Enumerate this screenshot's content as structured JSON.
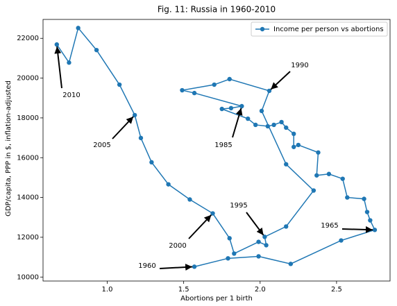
{
  "chart_data": {
    "type": "line",
    "title": "Fig. 11: Russia in 1960-2010",
    "x_label": "Abortions per 1 birth",
    "y_label": "GDP/capita, PPP in $, inflation-adjusted",
    "xlim": [
      0.58,
      2.85
    ],
    "ylim": [
      9800,
      22950
    ],
    "xticks": [
      {
        "value": 1,
        "label": "1.0"
      },
      1.5,
      {
        "value": 2,
        "label": "2.0"
      },
      2.5
    ],
    "yticks": [
      10000,
      12000,
      14000,
      16000,
      18000,
      20000,
      22000
    ],
    "legend": "upper right",
    "series": [
      {
        "name": "Income per person vs abortions",
        "color": "#1f77b4",
        "x": [
          1.57,
          1.79,
          1.99,
          2.2,
          2.53,
          2.75,
          2.72,
          2.7,
          2.68,
          2.57,
          2.54,
          2.45,
          2.37,
          2.38,
          2.25,
          2.22,
          2.22,
          2.17,
          2.14,
          2.09,
          2.05,
          1.97,
          1.92,
          1.75,
          1.81,
          1.88,
          1.57,
          1.49,
          1.7,
          1.8,
          2.06,
          2.01,
          2.17,
          2.35,
          2.17,
          2.03,
          2.04,
          1.99,
          1.83,
          1.8,
          1.69,
          1.54,
          1.4,
          1.29,
          1.22,
          1.18,
          1.08,
          0.93,
          0.81,
          0.75,
          0.67
        ],
        "values": [
          10520,
          10940,
          11040,
          10660,
          11840,
          12370,
          12850,
          13270,
          13930,
          14000,
          14940,
          15180,
          15110,
          16260,
          16640,
          16540,
          17200,
          17510,
          17790,
          17650,
          17580,
          17650,
          17960,
          18450,
          18490,
          18590,
          19250,
          19390,
          19670,
          19950,
          19360,
          18350,
          15670,
          14350,
          12540,
          12020,
          11600,
          11770,
          11180,
          11950,
          13200,
          13900,
          14660,
          15770,
          16990,
          18140,
          19670,
          21410,
          22520,
          20780,
          21690
        ]
      }
    ],
    "annotations": [
      "1960",
      "1965",
      "1985",
      "1990",
      "1995",
      "2000",
      "2005",
      "2010"
    ]
  }
}
